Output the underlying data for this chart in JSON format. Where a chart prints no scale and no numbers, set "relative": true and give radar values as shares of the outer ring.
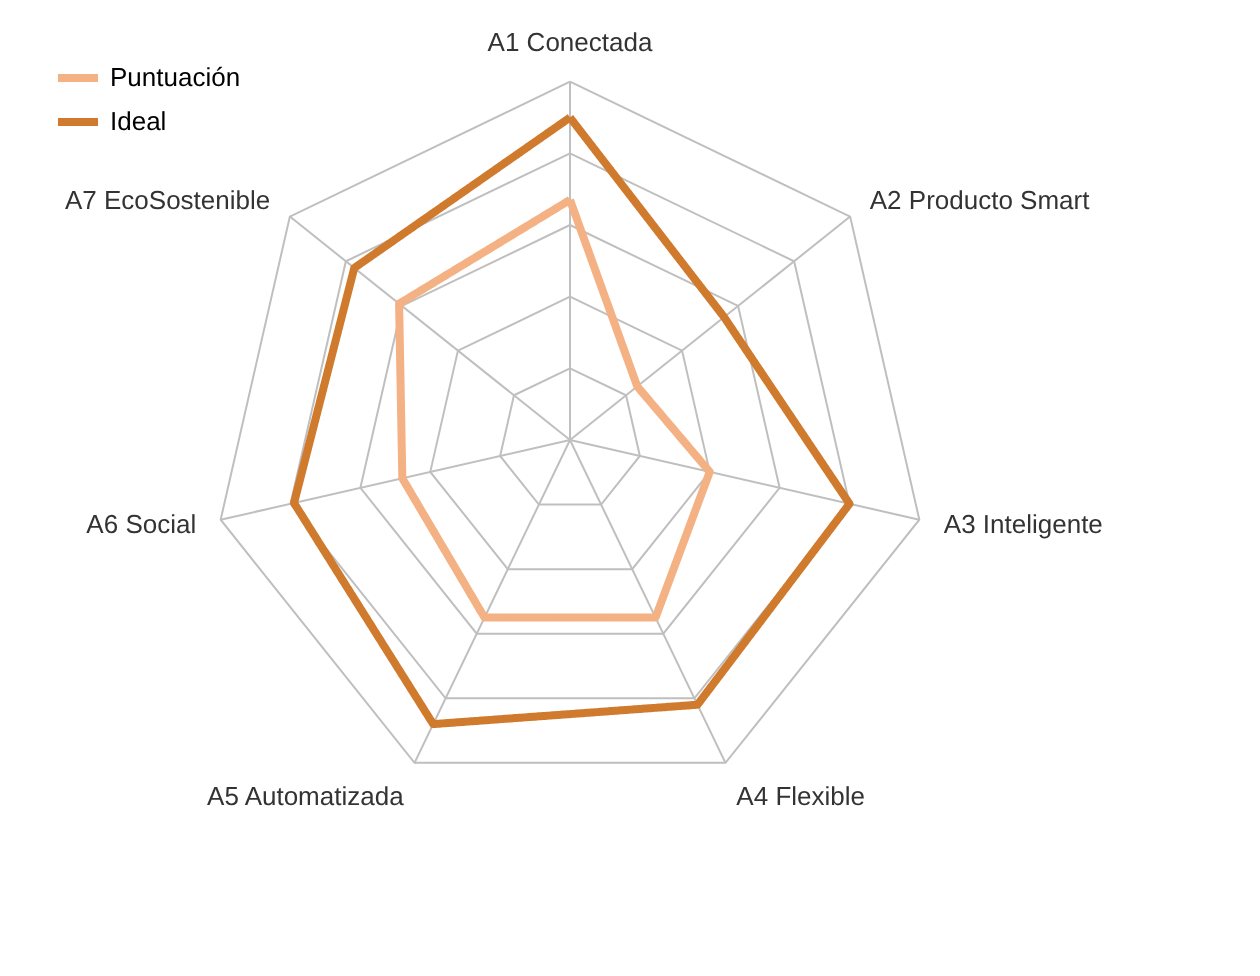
{
  "chart_data": {
    "type": "radar",
    "relative": true,
    "categories": [
      "A1 Conectada",
      "A2 Producto Smart",
      "A3 Inteligente",
      "A4 Flexible",
      "A5 Automatizada",
      "A6 Social",
      "A7 EcoSostenible"
    ],
    "series": [
      {
        "name": "Puntuación",
        "color": "#f4b183",
        "values": [
          0.67,
          0.24,
          0.4,
          0.55,
          0.55,
          0.48,
          0.61
        ]
      },
      {
        "name": "Ideal",
        "color": "#d07a2e",
        "values": [
          0.9,
          0.55,
          0.8,
          0.82,
          0.88,
          0.79,
          0.77
        ]
      }
    ],
    "grid": true,
    "legend": "top left",
    "line_style": "solid",
    "marker": "none"
  }
}
